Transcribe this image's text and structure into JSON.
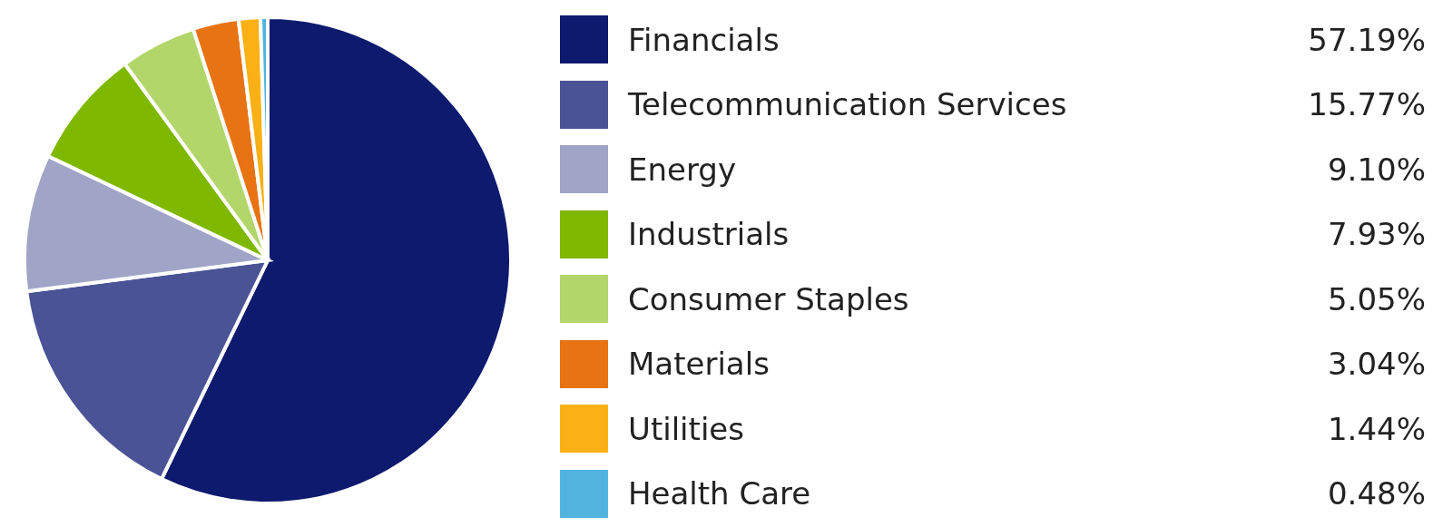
{
  "chart_data": {
    "type": "pie",
    "categories": [
      "Financials",
      "Telecommunication Services",
      "Energy",
      "Industrials",
      "Consumer Staples",
      "Materials",
      "Utilities",
      "Health Care"
    ],
    "values": [
      57.19,
      15.77,
      9.1,
      7.93,
      5.05,
      3.04,
      1.44,
      0.48
    ],
    "value_labels": [
      "57.19%",
      "15.77%",
      "9.10%",
      "7.93%",
      "5.05%",
      "3.04%",
      "1.44%",
      "0.48%"
    ],
    "colors": [
      "#0e1a6e",
      "#4a5396",
      "#a0a5c8",
      "#7fb800",
      "#b3d66a",
      "#e87312",
      "#fbb116",
      "#51b3de"
    ],
    "legend": "right"
  }
}
